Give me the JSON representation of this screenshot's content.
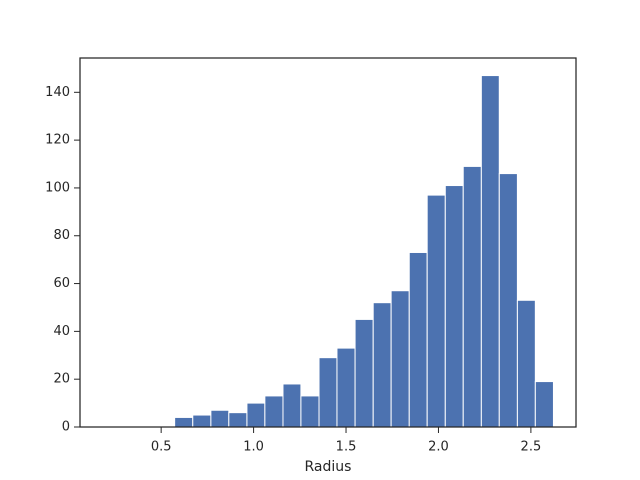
{
  "chart_data": {
    "type": "histogram",
    "x_label": "Radius",
    "bins": [
      0.183,
      0.281,
      0.378,
      0.476,
      0.573,
      0.671,
      0.769,
      0.866,
      0.964,
      1.061,
      1.159,
      1.256,
      1.354,
      1.451,
      1.549,
      1.647,
      1.744,
      1.842,
      1.939,
      2.037,
      2.134,
      2.232,
      2.329,
      2.427,
      2.524,
      2.622
    ],
    "values": [
      0,
      0,
      0,
      0,
      4,
      5,
      7,
      6,
      10,
      13,
      18,
      13,
      29,
      33,
      45,
      52,
      57,
      73,
      97,
      101,
      109,
      147,
      106,
      53,
      19
    ],
    "color": "#4c72b0",
    "xlim": [
      0.061,
      2.744
    ],
    "xticks": [
      0.5,
      {
        "value": 1,
        "label": "1.0"
      },
      1.5,
      {
        "value": 2,
        "label": "2.0"
      },
      2.5
    ],
    "ylim": [
      0,
      154.35
    ],
    "yticks": [
      0,
      20,
      40,
      60,
      80,
      100,
      120,
      140
    ],
    "grid": false
  }
}
